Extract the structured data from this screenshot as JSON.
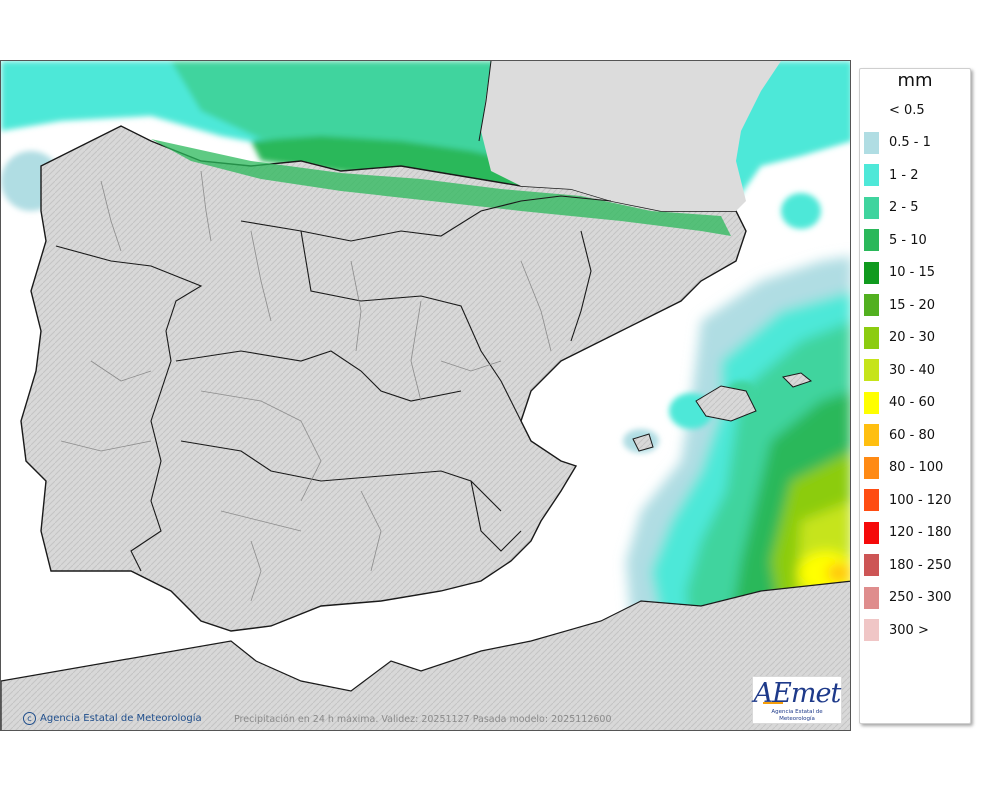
{
  "legend": {
    "title": "mm",
    "items": [
      {
        "label": "< 0.5",
        "color": "#ffffff"
      },
      {
        "label": "0.5 - 1",
        "color": "#b0dde3"
      },
      {
        "label": "1 - 2",
        "color": "#4ee8d8"
      },
      {
        "label": "2 - 5",
        "color": "#3fd49e"
      },
      {
        "label": "5 - 10",
        "color": "#2ab85a"
      },
      {
        "label": "10 - 15",
        "color": "#109a1e"
      },
      {
        "label": "15 - 20",
        "color": "#52b020"
      },
      {
        "label": "20 - 30",
        "color": "#8ccc10"
      },
      {
        "label": "30 - 40",
        "color": "#c6e41a"
      },
      {
        "label": "40 - 60",
        "color": "#ffff00"
      },
      {
        "label": "60 - 80",
        "color": "#ffbf10"
      },
      {
        "label": "80 - 100",
        "color": "#ff8a14"
      },
      {
        "label": "100 - 120",
        "color": "#ff4d12"
      },
      {
        "label": "120 - 180",
        "color": "#f50a0a"
      },
      {
        "label": "180 - 250",
        "color": "#cd5555"
      },
      {
        "label": "250 - 300",
        "color": "#df8d8d"
      },
      {
        "label": "300 >",
        "color": "#f0c6c6"
      }
    ]
  },
  "footer": {
    "credit": "Agencia Estatal de Meteorología",
    "caption": "Precipitación en 24 h máxima. Validez: 20251127 Pasada modelo: 2025112600"
  },
  "logo": {
    "word": "AEmet",
    "subtitle": "Agencia Estatal de Meteorología"
  },
  "colors": {
    "land": "#dcdcdc",
    "sea": "#ffffff",
    "border": "#1a1a1a",
    "province": "#8c8c8c"
  }
}
